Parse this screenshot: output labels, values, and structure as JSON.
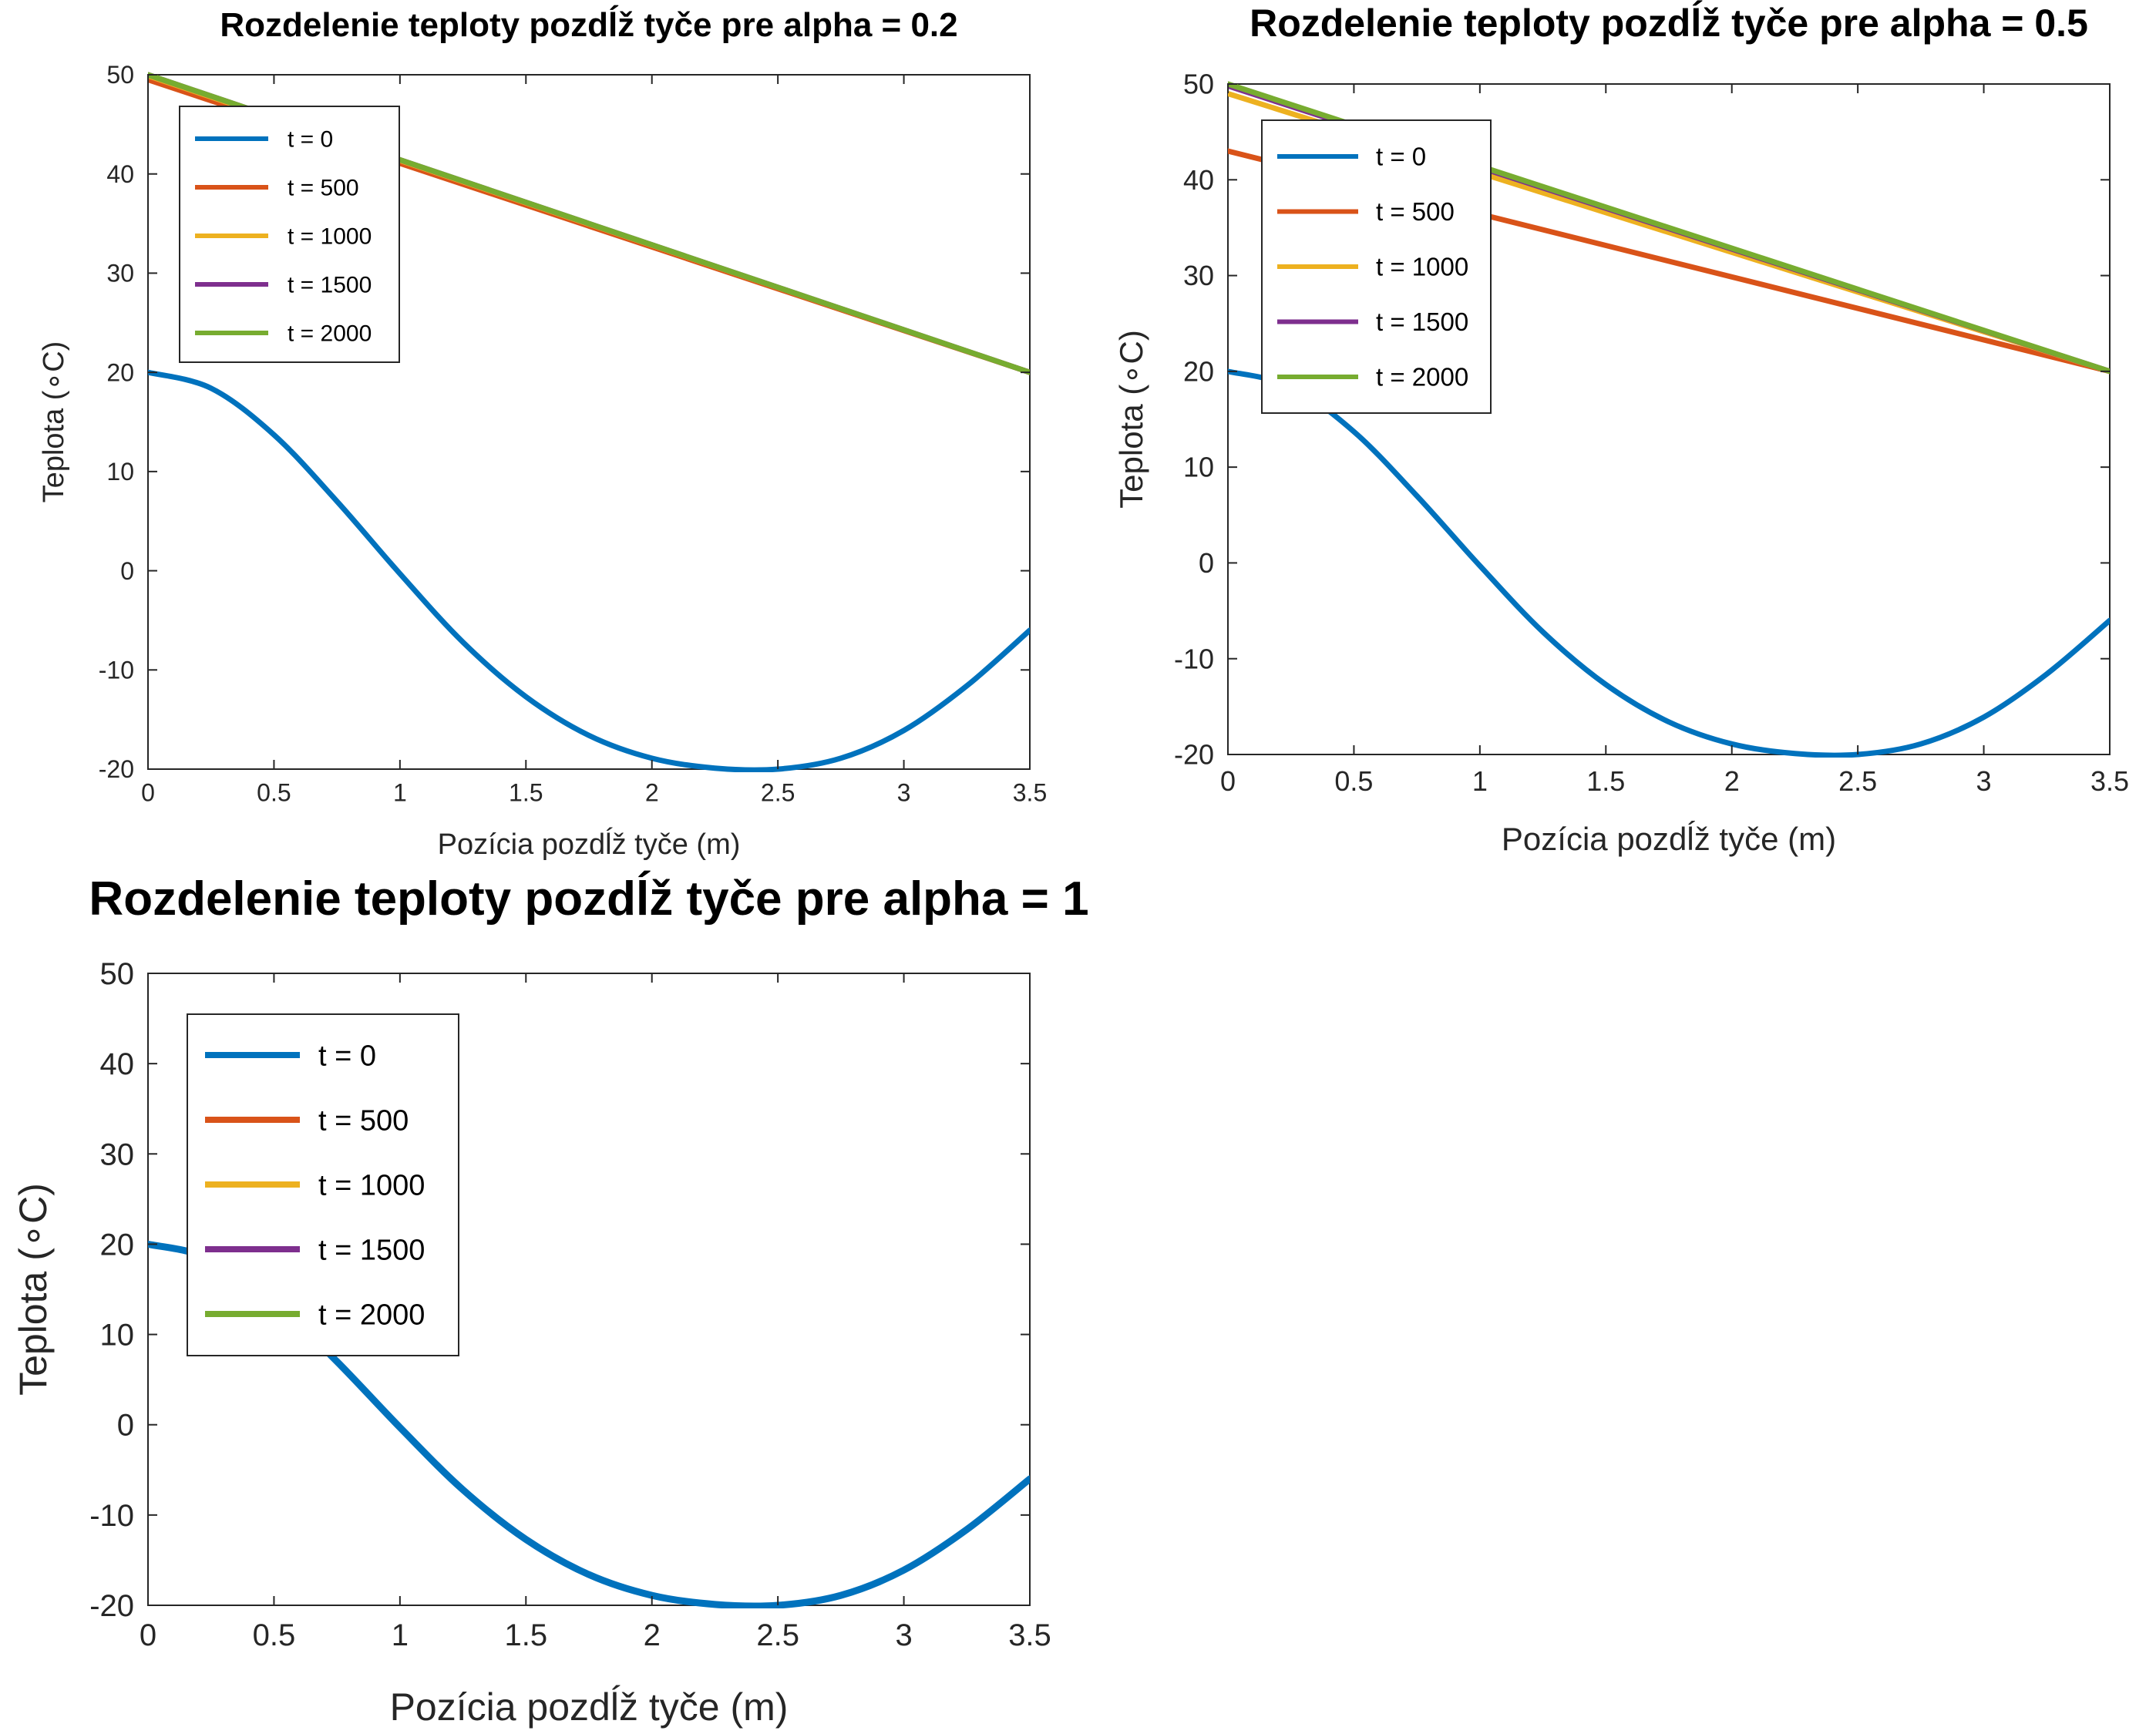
{
  "chart_data": [
    {
      "type": "line",
      "title": "Rozdelenie teploty pozdĺž tyče pre alpha = 0.2",
      "xlabel": "Pozícia pozdĺž tyče (m)",
      "ylabel": "Teplota (∘C)",
      "xlim": [
        0,
        3.5
      ],
      "ylim": [
        -20,
        50
      ],
      "xticks": [
        "0",
        "0.5",
        "1",
        "1.5",
        "2",
        "2.5",
        "3",
        "3.5"
      ],
      "yticks": [
        "-20",
        "-10",
        "0",
        "10",
        "20",
        "30",
        "40",
        "50"
      ],
      "legend": "top-left",
      "series": [
        {
          "name": "t = 0",
          "color": "#0072BD",
          "x": [
            0,
            0.25,
            0.5,
            0.75,
            1.0,
            1.25,
            1.5,
            1.75,
            2.0,
            2.25,
            2.5,
            2.75,
            3.0,
            3.25,
            3.5
          ],
          "y": [
            20,
            18.4,
            13.7,
            7.0,
            -0.3,
            -7.2,
            -12.7,
            -16.6,
            -18.9,
            -19.9,
            -20.0,
            -18.9,
            -16.1,
            -11.6,
            -6.0
          ]
        },
        {
          "name": "t = 500",
          "color": "#D95319",
          "x": [
            0,
            3.5
          ],
          "y": [
            49.5,
            20
          ]
        },
        {
          "name": "t = 1000",
          "color": "#EDB120",
          "x": [
            0,
            3.5
          ],
          "y": [
            49.9,
            20
          ]
        },
        {
          "name": "t = 1500",
          "color": "#7E2F8E",
          "x": [
            0,
            3.5
          ],
          "y": [
            50,
            20
          ]
        },
        {
          "name": "t = 2000",
          "color": "#77AC30",
          "x": [
            0,
            3.5
          ],
          "y": [
            50,
            20
          ]
        }
      ]
    },
    {
      "type": "line",
      "title": "Rozdelenie teploty pozdĺž tyče pre alpha = 0.5",
      "xlabel": "Pozícia pozdĺž tyče (m)",
      "ylabel": "Teplota (∘C)",
      "xlim": [
        0,
        3.5
      ],
      "ylim": [
        -20,
        50
      ],
      "xticks": [
        "0",
        "0.5",
        "1",
        "1.5",
        "2",
        "2.5",
        "3",
        "3.5"
      ],
      "yticks": [
        "-20",
        "-10",
        "0",
        "10",
        "20",
        "30",
        "40",
        "50"
      ],
      "legend": "top-left",
      "series": [
        {
          "name": "t = 0",
          "color": "#0072BD",
          "x": [
            0,
            0.25,
            0.5,
            0.75,
            1.0,
            1.25,
            1.5,
            1.75,
            2.0,
            2.25,
            2.5,
            2.75,
            3.0,
            3.25,
            3.5
          ],
          "y": [
            20,
            18.4,
            13.7,
            7.0,
            -0.3,
            -7.2,
            -12.7,
            -16.6,
            -18.9,
            -19.9,
            -20.0,
            -18.9,
            -16.1,
            -11.6,
            -6.0
          ]
        },
        {
          "name": "t = 500",
          "color": "#D95319",
          "x": [
            0,
            3.5
          ],
          "y": [
            43,
            20
          ]
        },
        {
          "name": "t = 1000",
          "color": "#EDB120",
          "x": [
            0,
            3.5
          ],
          "y": [
            49,
            20
          ]
        },
        {
          "name": "t = 1500",
          "color": "#7E2F8E",
          "x": [
            0,
            3.5
          ],
          "y": [
            49.8,
            20
          ]
        },
        {
          "name": "t = 2000",
          "color": "#77AC30",
          "x": [
            0,
            3.5
          ],
          "y": [
            50,
            20
          ]
        }
      ]
    },
    {
      "type": "line",
      "title": "Rozdelenie teploty pozdĺž tyče pre alpha = 1",
      "xlabel": "Pozícia pozdĺž tyče (m)",
      "ylabel": "Teplota (∘C)",
      "xlim": [
        0,
        3.5
      ],
      "ylim": [
        -20,
        50
      ],
      "xticks": [
        "0",
        "0.5",
        "1",
        "1.5",
        "2",
        "2.5",
        "3",
        "3.5"
      ],
      "yticks": [
        "-20",
        "-10",
        "0",
        "10",
        "20",
        "30",
        "40",
        "50"
      ],
      "legend": "top-left",
      "series": [
        {
          "name": "t = 0",
          "color": "#0072BD",
          "x": [
            0,
            0.25,
            0.5,
            0.75,
            1.0,
            1.25,
            1.5,
            1.75,
            2.0,
            2.25,
            2.5,
            2.75,
            3.0,
            3.25,
            3.5
          ],
          "y": [
            20,
            18.4,
            13.7,
            7.0,
            -0.3,
            -7.2,
            -12.7,
            -16.6,
            -18.9,
            -19.9,
            -20.0,
            -18.9,
            -16.1,
            -11.6,
            -6.0
          ]
        },
        {
          "name": "t = 500",
          "color": "#D95319",
          "x": [],
          "y": []
        },
        {
          "name": "t = 1000",
          "color": "#EDB120",
          "x": [],
          "y": []
        },
        {
          "name": "t = 1500",
          "color": "#7E2F8E",
          "x": [],
          "y": []
        },
        {
          "name": "t = 2000",
          "color": "#77AC30",
          "x": [],
          "y": []
        }
      ]
    }
  ]
}
